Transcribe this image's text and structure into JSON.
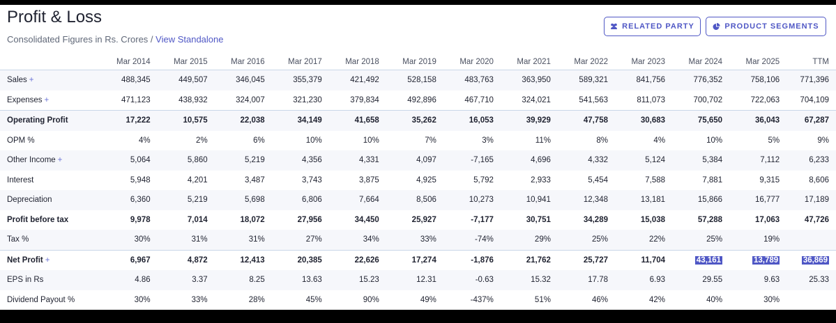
{
  "header": {
    "title": "Profit & Loss",
    "subtitle": "Consolidated Figures in Rs. Crores / ",
    "subtitle_link": "View Standalone",
    "buttons": {
      "related_party": "RELATED PARTY",
      "product_segments": "PRODUCT SEGMENTS"
    }
  },
  "table": {
    "columns": [
      "Mar 2014",
      "Mar 2015",
      "Mar 2016",
      "Mar 2017",
      "Mar 2018",
      "Mar 2019",
      "Mar 2020",
      "Mar 2021",
      "Mar 2022",
      "Mar 2023",
      "Mar 2024",
      "Mar 2025",
      "TTM"
    ],
    "rows": [
      {
        "label": "Sales",
        "plus": "+",
        "style": "shade",
        "values": [
          "488,345",
          "449,507",
          "346,045",
          "355,379",
          "421,492",
          "528,158",
          "483,763",
          "363,950",
          "589,321",
          "841,756",
          "776,352",
          "758,106",
          "771,396"
        ]
      },
      {
        "label": "Expenses",
        "plus": "+",
        "style": "",
        "values": [
          "471,123",
          "438,932",
          "324,007",
          "321,230",
          "379,834",
          "492,896",
          "467,710",
          "324,021",
          "541,563",
          "811,073",
          "700,702",
          "722,063",
          "704,109"
        ]
      },
      {
        "label": "Operating Profit",
        "style": "shade strong sep",
        "values": [
          "17,222",
          "10,575",
          "22,038",
          "34,149",
          "41,658",
          "35,262",
          "16,053",
          "39,929",
          "47,758",
          "30,683",
          "75,650",
          "36,043",
          "67,287"
        ]
      },
      {
        "label": "OPM %",
        "style": "",
        "values": [
          "4%",
          "2%",
          "6%",
          "10%",
          "10%",
          "7%",
          "3%",
          "11%",
          "8%",
          "4%",
          "10%",
          "5%",
          "9%"
        ]
      },
      {
        "label": "Other Income",
        "plus": "+",
        "style": "shade",
        "values": [
          "5,064",
          "5,860",
          "5,219",
          "4,356",
          "4,331",
          "4,097",
          "-7,165",
          "4,696",
          "4,332",
          "5,124",
          "5,384",
          "7,112",
          "6,233"
        ]
      },
      {
        "label": "Interest",
        "style": "",
        "values": [
          "5,948",
          "4,201",
          "3,487",
          "3,743",
          "3,875",
          "4,925",
          "5,792",
          "2,933",
          "5,454",
          "7,588",
          "7,881",
          "9,315",
          "8,606"
        ]
      },
      {
        "label": "Depreciation",
        "style": "shade",
        "values": [
          "6,360",
          "5,219",
          "5,698",
          "6,806",
          "7,664",
          "8,506",
          "10,273",
          "10,941",
          "12,348",
          "13,181",
          "15,866",
          "16,777",
          "17,189"
        ]
      },
      {
        "label": "Profit before tax",
        "style": "strong",
        "values": [
          "9,978",
          "7,014",
          "18,072",
          "27,956",
          "34,450",
          "25,927",
          "-7,177",
          "30,751",
          "34,289",
          "15,038",
          "57,288",
          "17,063",
          "47,726"
        ]
      },
      {
        "label": "Tax %",
        "style": "shade",
        "values": [
          "30%",
          "31%",
          "31%",
          "27%",
          "34%",
          "33%",
          "-74%",
          "29%",
          "25%",
          "22%",
          "25%",
          "19%",
          ""
        ]
      },
      {
        "label": "Net Profit",
        "plus": "+",
        "style": "strong sep",
        "highlight": [
          10,
          11,
          12
        ],
        "values": [
          "6,967",
          "4,872",
          "12,413",
          "20,385",
          "22,626",
          "17,274",
          "-1,876",
          "21,762",
          "25,727",
          "11,704",
          "43,161",
          "13,789",
          "36,869"
        ]
      },
      {
        "label": "EPS in Rs",
        "style": "shade",
        "values": [
          "4.86",
          "3.37",
          "8.25",
          "13.63",
          "15.23",
          "12.31",
          "-0.63",
          "15.32",
          "17.78",
          "6.93",
          "29.55",
          "9.63",
          "25.33"
        ]
      },
      {
        "label": "Dividend Payout %",
        "style": "",
        "values": [
          "30%",
          "33%",
          "28%",
          "45%",
          "90%",
          "49%",
          "-437%",
          "51%",
          "46%",
          "42%",
          "40%",
          "30%",
          ""
        ]
      }
    ]
  },
  "icons": {
    "related_party": "users-icon",
    "product_segments": "pie-chart-icon"
  },
  "colors": {
    "accent": "#4f57c5",
    "row_shade": "#f6f7fb",
    "border": "#c9d6e8"
  }
}
